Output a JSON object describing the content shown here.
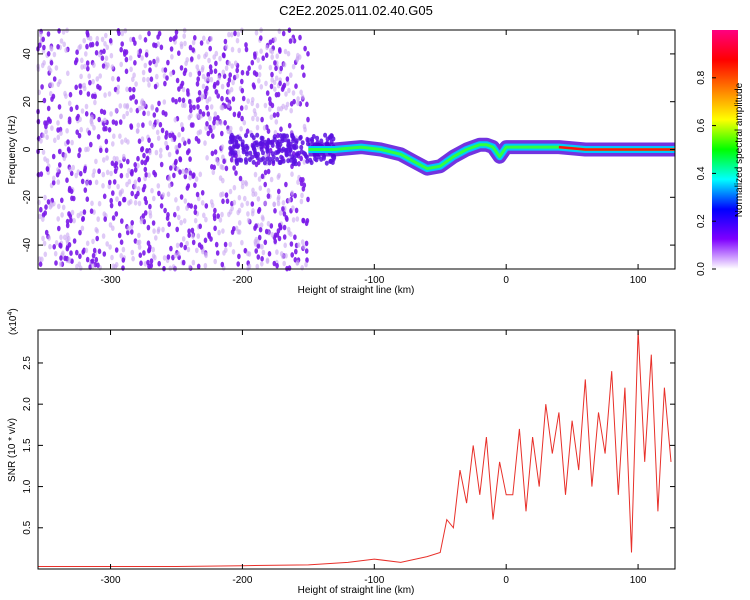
{
  "title": "C2E2.2025.011.02.40.G05",
  "chart_data": [
    {
      "type": "heatmap",
      "xlabel": "Height of straight line (km)",
      "ylabel": "Frequency (Hz)",
      "xlim": [
        -355,
        128
      ],
      "ylim": [
        -50,
        50
      ],
      "xticks": [
        -300,
        -200,
        -100,
        0,
        100
      ],
      "yticks": [
        -40,
        -20,
        0,
        20,
        40
      ],
      "colorbar": {
        "label": "Normalized spectral amplitude",
        "range": [
          0,
          1
        ],
        "ticks": [
          0.0,
          0.2,
          0.4,
          0.6,
          0.8
        ],
        "colors": [
          "#ffffff",
          "#7f00ff",
          "#0000ff",
          "#00ffff",
          "#00ff00",
          "#ffff00",
          "#ff7f00",
          "#ff0000",
          "#ff0080"
        ]
      },
      "ridge": {
        "x": [
          -150,
          -130,
          -110,
          -95,
          -80,
          -70,
          -60,
          -50,
          -40,
          -30,
          -20,
          -15,
          -10,
          -5,
          0,
          20,
          40,
          60,
          80,
          100,
          128
        ],
        "y": [
          0,
          0,
          1,
          0,
          -2,
          -5,
          -8,
          -7,
          -3,
          0,
          2,
          2,
          1,
          -3,
          1,
          1,
          1,
          0,
          0,
          0,
          0
        ]
      }
    },
    {
      "type": "line",
      "xlabel": "Height of straight line (km)",
      "ylabel": "SNR (10 * v/v)",
      "scale_note_base": "(x10",
      "scale_note_exp": "4",
      "scale_note_close": ")",
      "xlim": [
        -355,
        128
      ],
      "ylim": [
        0,
        2.9
      ],
      "xticks": [
        -300,
        -200,
        -100,
        0,
        100
      ],
      "yticks": [
        "0.5",
        "1.0",
        "1.5",
        "2.0",
        "2.5"
      ],
      "series": [
        {
          "color": "#e8302a",
          "x": [
            -355,
            -300,
            -250,
            -200,
            -150,
            -120,
            -100,
            -80,
            -60,
            -50,
            -45,
            -40,
            -35,
            -30,
            -25,
            -20,
            -15,
            -10,
            -5,
            0,
            5,
            10,
            15,
            20,
            25,
            30,
            35,
            40,
            45,
            50,
            55,
            60,
            65,
            70,
            75,
            80,
            85,
            90,
            95,
            100,
            105,
            110,
            115,
            120,
            125
          ],
          "values": [
            0.03,
            0.03,
            0.03,
            0.04,
            0.05,
            0.08,
            0.12,
            0.08,
            0.15,
            0.2,
            0.6,
            0.5,
            1.2,
            0.8,
            1.5,
            0.9,
            1.6,
            0.6,
            1.3,
            0.9,
            0.9,
            1.7,
            0.7,
            1.6,
            1.0,
            2.0,
            1.4,
            1.9,
            0.9,
            1.8,
            1.2,
            2.3,
            1.0,
            1.9,
            1.4,
            2.4,
            0.9,
            2.2,
            0.2,
            2.9,
            1.3,
            2.6,
            0.7,
            2.2,
            1.3
          ]
        }
      ]
    }
  ]
}
